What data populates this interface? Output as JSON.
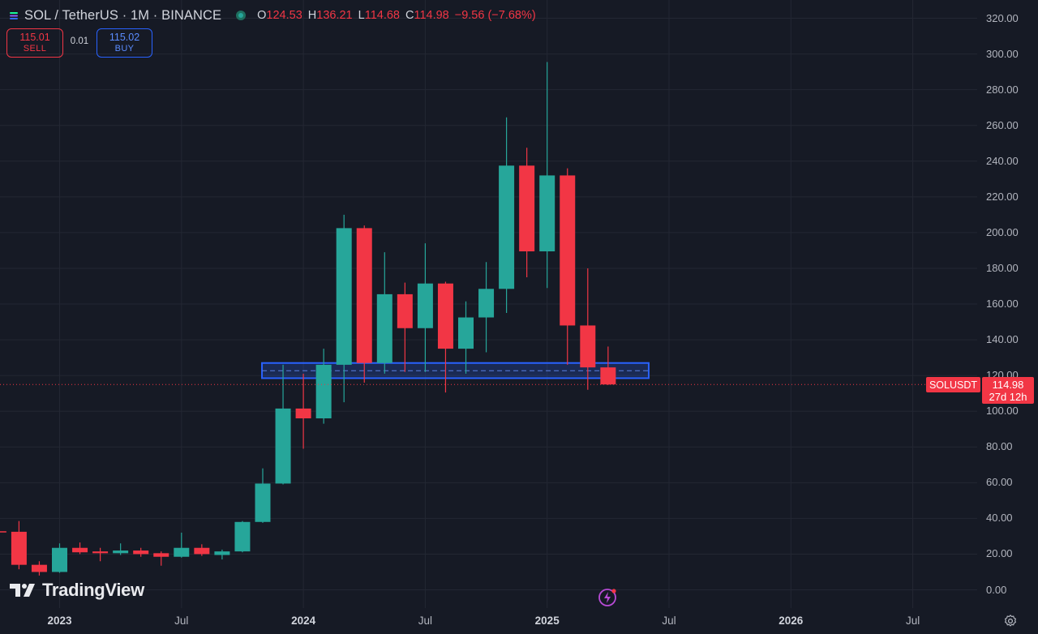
{
  "header": {
    "symbol": "SOL / TetherUS · 1M · BINANCE",
    "o_label": "O",
    "o_value": "124.53",
    "h_label": "H",
    "h_value": "136.21",
    "l_label": "L",
    "l_value": "114.68",
    "c_label": "C",
    "c_value": "114.98",
    "change": "−9.56 (−7.68%)"
  },
  "trade": {
    "sell_price": "115.01",
    "sell_label": "SELL",
    "spread": "0.01",
    "buy_price": "115.02",
    "buy_label": "BUY"
  },
  "price_axis": {
    "labels": [
      "320.00",
      "300.00",
      "280.00",
      "260.00",
      "240.00",
      "220.00",
      "200.00",
      "180.00",
      "160.00",
      "140.00",
      "120.00",
      "100.00",
      "80.00",
      "60.00",
      "40.00",
      "20.00",
      "0.00"
    ]
  },
  "time_axis": {
    "labels": [
      "2023",
      "Jul",
      "2024",
      "Jul",
      "2025",
      "Jul",
      "2026",
      "Jul"
    ]
  },
  "last_price": {
    "symbol": "SOLUSDT",
    "price": "114.98",
    "countdown": "27d 12h"
  },
  "brand": {
    "name": "TradingView"
  },
  "icons": {
    "flash": "flash-icon",
    "settings": "gear-icon",
    "logo": "tradingview-logo-icon"
  },
  "colors": {
    "up": "#26a69a",
    "down": "#f23645",
    "zone": "#2962ff",
    "background": "#161a25"
  },
  "chart_data": {
    "type": "candlestick",
    "interval": "1M",
    "ylim": [
      0,
      320
    ],
    "x_tick_dates": [
      "2023-01",
      "2023-07",
      "2024-01",
      "2024-07",
      "2025-01",
      "2025-07",
      "2026-01",
      "2026-07"
    ],
    "candles": [
      {
        "date": "2022-10",
        "open": 32.8,
        "high": 33.5,
        "low": 31.5,
        "close": 32.2
      },
      {
        "date": "2022-11",
        "open": 32.5,
        "high": 38.5,
        "low": 11.5,
        "close": 14.0
      },
      {
        "date": "2022-12",
        "open": 14.0,
        "high": 16.0,
        "low": 8.0,
        "close": 10.0
      },
      {
        "date": "2023-01",
        "open": 10.0,
        "high": 26.0,
        "low": 9.5,
        "close": 23.5
      },
      {
        "date": "2023-02",
        "open": 23.5,
        "high": 26.5,
        "low": 20.0,
        "close": 21.0
      },
      {
        "date": "2023-03",
        "open": 21.5,
        "high": 23.5,
        "low": 16.0,
        "close": 20.5
      },
      {
        "date": "2023-04",
        "open": 20.5,
        "high": 26.0,
        "low": 19.5,
        "close": 22.0
      },
      {
        "date": "2023-05",
        "open": 22.0,
        "high": 23.5,
        "low": 18.5,
        "close": 20.0
      },
      {
        "date": "2023-06",
        "open": 20.5,
        "high": 21.5,
        "low": 13.5,
        "close": 18.5
      },
      {
        "date": "2023-07",
        "open": 18.5,
        "high": 32.0,
        "low": 18.0,
        "close": 23.5
      },
      {
        "date": "2023-08",
        "open": 23.5,
        "high": 25.5,
        "low": 19.0,
        "close": 20.0
      },
      {
        "date": "2023-09",
        "open": 19.5,
        "high": 22.5,
        "low": 17.0,
        "close": 21.5
      },
      {
        "date": "2023-10",
        "open": 21.5,
        "high": 38.5,
        "low": 21.0,
        "close": 38.0
      },
      {
        "date": "2023-11",
        "open": 38.0,
        "high": 68.0,
        "low": 37.5,
        "close": 59.5
      },
      {
        "date": "2023-12",
        "open": 59.5,
        "high": 126.0,
        "low": 59.0,
        "close": 101.5
      },
      {
        "date": "2024-01",
        "open": 101.5,
        "high": 121.0,
        "low": 79.0,
        "close": 96.0
      },
      {
        "date": "2024-02",
        "open": 96.0,
        "high": 135.0,
        "low": 93.0,
        "close": 126.0
      },
      {
        "date": "2024-03",
        "open": 126.0,
        "high": 210.0,
        "low": 105.0,
        "close": 202.5
      },
      {
        "date": "2024-04",
        "open": 202.5,
        "high": 204.0,
        "low": 116.0,
        "close": 127.0
      },
      {
        "date": "2024-05",
        "open": 127.0,
        "high": 189.0,
        "low": 121.0,
        "close": 165.5
      },
      {
        "date": "2024-06",
        "open": 165.5,
        "high": 172.0,
        "low": 122.0,
        "close": 146.5
      },
      {
        "date": "2024-07",
        "open": 146.5,
        "high": 194.0,
        "low": 122.0,
        "close": 171.5
      },
      {
        "date": "2024-08",
        "open": 171.5,
        "high": 172.5,
        "low": 110.5,
        "close": 135.0
      },
      {
        "date": "2024-09",
        "open": 135.0,
        "high": 161.5,
        "low": 121.0,
        "close": 152.5
      },
      {
        "date": "2024-10",
        "open": 152.5,
        "high": 183.5,
        "low": 133.0,
        "close": 168.5
      },
      {
        "date": "2024-11",
        "open": 168.5,
        "high": 264.5,
        "low": 155.0,
        "close": 237.5
      },
      {
        "date": "2024-12",
        "open": 237.5,
        "high": 247.5,
        "low": 175.0,
        "close": 189.5
      },
      {
        "date": "2025-01",
        "open": 189.5,
        "high": 295.5,
        "low": 169.0,
        "close": 232.0
      },
      {
        "date": "2025-02",
        "open": 232.0,
        "high": 236.0,
        "low": 126.0,
        "close": 148.0
      },
      {
        "date": "2025-03",
        "open": 148.0,
        "high": 180.0,
        "low": 112.0,
        "close": 124.53
      },
      {
        "date": "2025-04",
        "open": 124.53,
        "high": 136.21,
        "low": 114.68,
        "close": 114.98
      }
    ],
    "zone": {
      "low": 118.5,
      "high": 127.0,
      "mid": 122.7,
      "start": "2023-12",
      "end": "2025-06"
    },
    "last_price": 114.98,
    "grid": true
  }
}
